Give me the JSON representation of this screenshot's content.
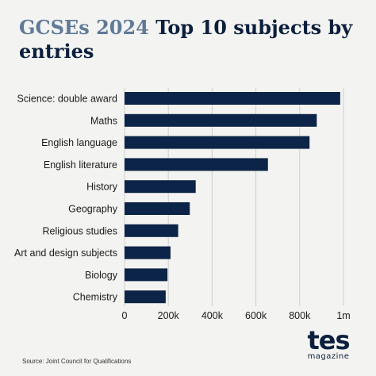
{
  "header": {
    "title_accent": "GCSEs 2024",
    "title_main": "Top 10 subjects by entries"
  },
  "chart_data": {
    "type": "bar",
    "orientation": "horizontal",
    "title": "GCSEs 2024 Top 10 subjects by entries",
    "categories": [
      "Science: double award",
      "Maths",
      "English language",
      "English literature",
      "History",
      "Geography",
      "Religious studies",
      "Art and design subjects",
      "Biology",
      "Chemistry"
    ],
    "values": [
      985000,
      878000,
      845000,
      655000,
      325000,
      298000,
      245000,
      210000,
      196000,
      188000
    ],
    "xlim": [
      0,
      1000000
    ],
    "xticks": [
      0,
      200000,
      400000,
      600000,
      800000,
      1000000
    ],
    "xtick_labels": [
      "0",
      "200k",
      "400k",
      "600k",
      "800k",
      "1m"
    ],
    "xlabel": "",
    "ylabel": "",
    "grid": true,
    "bar_color": "#0c2447",
    "grid_color": "#cfcfcf"
  },
  "footer": {
    "source": "Source: Joint Council for Qualifications",
    "logo_word": "tes",
    "logo_sub": "magazine"
  }
}
